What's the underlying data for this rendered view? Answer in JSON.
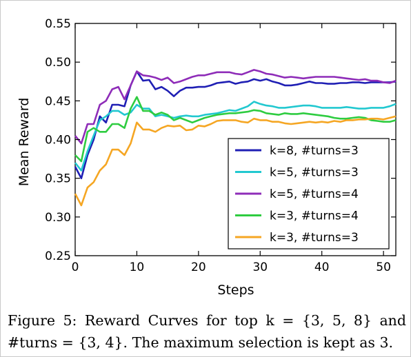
{
  "chart_data": {
    "type": "line",
    "title": "",
    "xlabel": "Steps",
    "ylabel": "Mean Reward",
    "xlim": [
      0,
      52
    ],
    "ylim": [
      0.25,
      0.55
    ],
    "xticks": [
      "0",
      "10",
      "20",
      "30",
      "40",
      "50"
    ],
    "yticks": [
      "0.25",
      "0.30",
      "0.35",
      "0.40",
      "0.45",
      "0.50",
      "0.55"
    ],
    "grid": false,
    "legend_position": "bottom-right",
    "x": [
      0,
      1,
      2,
      3,
      4,
      5,
      6,
      7,
      8,
      9,
      10,
      11,
      12,
      13,
      14,
      15,
      16,
      17,
      18,
      19,
      20,
      21,
      22,
      23,
      24,
      25,
      26,
      27,
      28,
      29,
      30,
      31,
      32,
      33,
      34,
      35,
      36,
      37,
      38,
      39,
      40,
      41,
      42,
      43,
      44,
      45,
      46,
      47,
      48,
      49,
      50,
      51,
      52
    ],
    "series": [
      {
        "name": "k=8, #turns=3",
        "color": "#1f1fb4",
        "values": [
          0.365,
          0.35,
          0.38,
          0.4,
          0.43,
          0.422,
          0.445,
          0.445,
          0.443,
          0.47,
          0.488,
          0.476,
          0.477,
          0.465,
          0.468,
          0.463,
          0.456,
          0.463,
          0.467,
          0.467,
          0.468,
          0.468,
          0.47,
          0.473,
          0.474,
          0.475,
          0.472,
          0.474,
          0.475,
          0.478,
          0.476,
          0.478,
          0.475,
          0.473,
          0.47,
          0.47,
          0.471,
          0.473,
          0.475,
          0.473,
          0.473,
          0.472,
          0.472,
          0.473,
          0.473,
          0.474,
          0.474,
          0.473,
          0.474,
          0.474,
          0.474,
          0.474,
          0.475
        ]
      },
      {
        "name": "k=5, #turns=3",
        "color": "#22c8d0",
        "values": [
          0.37,
          0.36,
          0.385,
          0.405,
          0.425,
          0.43,
          0.437,
          0.437,
          0.432,
          0.435,
          0.445,
          0.44,
          0.44,
          0.43,
          0.432,
          0.43,
          0.428,
          0.43,
          0.431,
          0.43,
          0.43,
          0.432,
          0.433,
          0.434,
          0.436,
          0.438,
          0.437,
          0.44,
          0.443,
          0.449,
          0.446,
          0.444,
          0.443,
          0.441,
          0.441,
          0.442,
          0.443,
          0.444,
          0.444,
          0.443,
          0.441,
          0.441,
          0.441,
          0.441,
          0.442,
          0.441,
          0.44,
          0.44,
          0.441,
          0.441,
          0.441,
          0.443,
          0.446
        ]
      },
      {
        "name": "k=5, #turns=4",
        "color": "#8e2cb8",
        "values": [
          0.405,
          0.395,
          0.42,
          0.42,
          0.445,
          0.45,
          0.465,
          0.468,
          0.452,
          0.47,
          0.488,
          0.483,
          0.482,
          0.48,
          0.477,
          0.48,
          0.473,
          0.475,
          0.478,
          0.481,
          0.483,
          0.483,
          0.485,
          0.487,
          0.487,
          0.487,
          0.485,
          0.484,
          0.487,
          0.49,
          0.488,
          0.485,
          0.484,
          0.482,
          0.48,
          0.481,
          0.48,
          0.479,
          0.48,
          0.481,
          0.481,
          0.481,
          0.481,
          0.48,
          0.479,
          0.478,
          0.477,
          0.478,
          0.476,
          0.476,
          0.474,
          0.473,
          0.476
        ]
      },
      {
        "name": "k=3, #turns=4",
        "color": "#2ecc40",
        "values": [
          0.38,
          0.372,
          0.41,
          0.415,
          0.41,
          0.41,
          0.42,
          0.42,
          0.415,
          0.44,
          0.455,
          0.437,
          0.437,
          0.432,
          0.435,
          0.432,
          0.425,
          0.428,
          0.425,
          0.422,
          0.425,
          0.428,
          0.43,
          0.432,
          0.433,
          0.434,
          0.434,
          0.435,
          0.436,
          0.438,
          0.437,
          0.434,
          0.433,
          0.432,
          0.434,
          0.433,
          0.433,
          0.434,
          0.433,
          0.432,
          0.431,
          0.43,
          0.428,
          0.427,
          0.427,
          0.428,
          0.429,
          0.428,
          0.425,
          0.424,
          0.423,
          0.423,
          0.425
        ]
      },
      {
        "name": "k=3, #turns=3",
        "color": "#f5a623",
        "values": [
          0.33,
          0.315,
          0.338,
          0.345,
          0.36,
          0.368,
          0.387,
          0.387,
          0.38,
          0.395,
          0.422,
          0.413,
          0.413,
          0.41,
          0.415,
          0.418,
          0.417,
          0.418,
          0.412,
          0.413,
          0.418,
          0.417,
          0.42,
          0.424,
          0.425,
          0.425,
          0.425,
          0.423,
          0.422,
          0.427,
          0.425,
          0.425,
          0.423,
          0.423,
          0.421,
          0.42,
          0.421,
          0.422,
          0.423,
          0.422,
          0.423,
          0.422,
          0.424,
          0.423,
          0.425,
          0.425,
          0.426,
          0.426,
          0.427,
          0.427,
          0.426,
          0.428,
          0.43
        ]
      }
    ]
  },
  "caption": {
    "line1": "Figure 5: Reward Curves for top k = {3, 5, 8} and",
    "line2": "#turns = {3, 4}. The maximum selection is kept as 3."
  }
}
